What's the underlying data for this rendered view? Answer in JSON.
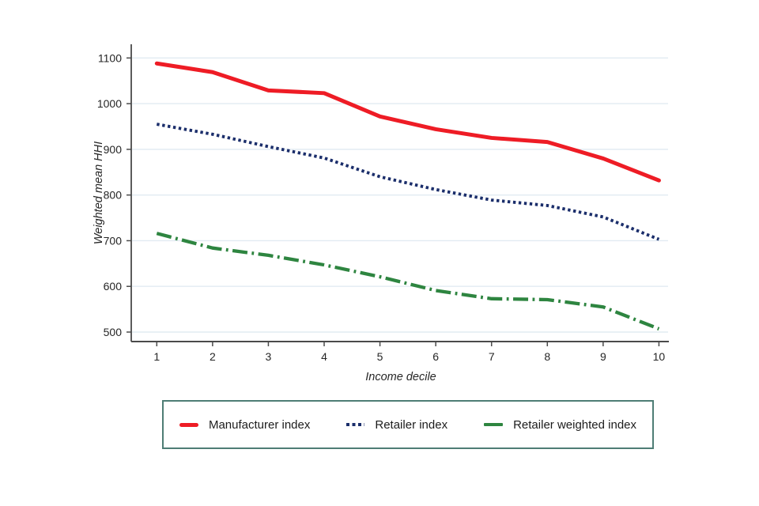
{
  "chart_data": {
    "type": "line",
    "title": "",
    "xlabel": "Income decile",
    "ylabel": "Weighted mean HHI",
    "x": [
      1,
      2,
      3,
      4,
      5,
      6,
      7,
      8,
      9,
      10
    ],
    "xtick_labels": [
      "1",
      "2",
      "3",
      "4",
      "5",
      "6",
      "7",
      "8",
      "9",
      "10"
    ],
    "yticks": [
      500,
      600,
      700,
      800,
      900,
      1000,
      1100
    ],
    "ylim": [
      500,
      1100
    ],
    "grid": true,
    "legend_position": "bottom",
    "series": [
      {
        "name": "Manufacturer index",
        "color": "#ee1c25",
        "style": "solid",
        "values": [
          1088,
          1069,
          1029,
          1023,
          972,
          944,
          925,
          916,
          880,
          832
        ]
      },
      {
        "name": "Retailer index",
        "color": "#1b2e6b",
        "style": "dotted",
        "values": [
          955,
          933,
          906,
          881,
          840,
          812,
          789,
          777,
          752,
          703
        ]
      },
      {
        "name": "Retailer weighted index",
        "color": "#2e8540",
        "style": "dashdot",
        "values": [
          716,
          684,
          668,
          647,
          621,
          591,
          573,
          571,
          555,
          507
        ]
      }
    ],
    "colors": {
      "gridline": "#e2ebf2",
      "axis": "#4a4a4a",
      "tick_label": "#262626",
      "legend_border": "#4e7d75"
    }
  }
}
